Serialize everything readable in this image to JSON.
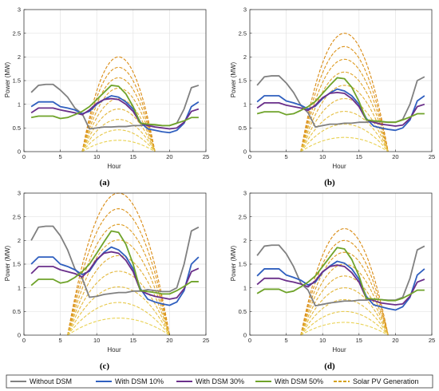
{
  "legend": {
    "items": [
      {
        "label": "Without DSM",
        "color": "#808080",
        "style": "solid"
      },
      {
        "label": "With DSM 10%",
        "color": "#2f5fbf",
        "style": "solid"
      },
      {
        "label": "With DSM 30%",
        "color": "#6a2f8a",
        "style": "solid"
      },
      {
        "label": "With DSM 50%",
        "color": "#6fa32a",
        "style": "solid"
      },
      {
        "label": "Solar PV Generation",
        "color": "#d4a017",
        "style": "dashed"
      }
    ]
  },
  "chart_data": [
    {
      "type": "line",
      "panel_label": "(a)",
      "xlabel": "Hour",
      "ylabel": "Power (MW)",
      "xlim": [
        0,
        25
      ],
      "ylim": [
        0,
        3
      ],
      "xticks": [
        0,
        5,
        10,
        15,
        20,
        25
      ],
      "yticks": [
        0,
        0.5,
        1,
        1.5,
        2,
        2.5,
        3
      ],
      "grid": true,
      "x": [
        1,
        2,
        3,
        4,
        5,
        6,
        7,
        8,
        9,
        10,
        11,
        12,
        13,
        14,
        15,
        16,
        17,
        18,
        19,
        20,
        21,
        22,
        23,
        24
      ],
      "series": [
        {
          "name": "Without DSM",
          "values": [
            1.25,
            1.4,
            1.42,
            1.42,
            1.3,
            1.15,
            0.92,
            0.8,
            0.48,
            0.5,
            0.52,
            0.52,
            0.53,
            0.53,
            0.55,
            0.55,
            0.57,
            0.56,
            0.55,
            0.55,
            0.6,
            0.9,
            1.35,
            1.4
          ]
        },
        {
          "name": "With DSM 10%",
          "values": [
            0.95,
            1.05,
            1.05,
            1.05,
            0.95,
            0.92,
            0.88,
            0.8,
            0.85,
            1.0,
            1.1,
            1.18,
            1.15,
            1.05,
            0.9,
            0.62,
            0.48,
            0.45,
            0.42,
            0.4,
            0.45,
            0.6,
            0.95,
            1.05
          ]
        },
        {
          "name": "With DSM 30%",
          "values": [
            0.82,
            0.92,
            0.92,
            0.92,
            0.88,
            0.85,
            0.82,
            0.78,
            0.88,
            1.02,
            1.1,
            1.12,
            1.1,
            1.0,
            0.85,
            0.6,
            0.55,
            0.52,
            0.5,
            0.48,
            0.5,
            0.62,
            0.85,
            0.9
          ]
        },
        {
          "name": "With DSM 50%",
          "values": [
            0.72,
            0.75,
            0.75,
            0.75,
            0.7,
            0.72,
            0.78,
            0.85,
            0.95,
            1.1,
            1.25,
            1.4,
            1.38,
            1.22,
            0.95,
            0.6,
            0.58,
            0.57,
            0.55,
            0.55,
            0.6,
            0.65,
            0.72,
            0.72
          ]
        }
      ],
      "solar": {
        "name": "Solar PV Generation",
        "start": 8,
        "end": 18,
        "peaks": [
          2.0,
          1.78,
          1.56,
          1.34,
          1.12,
          0.9,
          0.68,
          0.46,
          0.24
        ]
      }
    },
    {
      "type": "line",
      "panel_label": "(b)",
      "xlabel": "Hour",
      "ylabel": "Power (MW)",
      "xlim": [
        0,
        25
      ],
      "ylim": [
        0,
        3
      ],
      "xticks": [
        0,
        5,
        10,
        15,
        20,
        25
      ],
      "yticks": [
        0,
        0.5,
        1,
        1.5,
        2,
        2.5,
        3
      ],
      "grid": true,
      "x": [
        1,
        2,
        3,
        4,
        5,
        6,
        7,
        8,
        9,
        10,
        11,
        12,
        13,
        14,
        15,
        16,
        17,
        18,
        19,
        20,
        21,
        22,
        23,
        24
      ],
      "series": [
        {
          "name": "Without DSM",
          "values": [
            1.4,
            1.58,
            1.6,
            1.6,
            1.45,
            1.25,
            0.98,
            0.82,
            0.52,
            0.55,
            0.58,
            0.58,
            0.6,
            0.6,
            0.62,
            0.62,
            0.64,
            0.63,
            0.62,
            0.62,
            0.68,
            1.0,
            1.5,
            1.58
          ]
        },
        {
          "name": "With DSM 10%",
          "values": [
            1.05,
            1.18,
            1.18,
            1.18,
            1.07,
            1.03,
            0.98,
            0.9,
            0.96,
            1.12,
            1.24,
            1.32,
            1.28,
            1.18,
            1.0,
            0.7,
            0.54,
            0.5,
            0.47,
            0.45,
            0.5,
            0.67,
            1.07,
            1.18
          ]
        },
        {
          "name": "With DSM 30%",
          "values": [
            0.92,
            1.03,
            1.03,
            1.03,
            0.98,
            0.95,
            0.92,
            0.87,
            0.98,
            1.14,
            1.23,
            1.25,
            1.23,
            1.12,
            0.95,
            0.67,
            0.62,
            0.58,
            0.56,
            0.54,
            0.56,
            0.7,
            0.95,
            1.0
          ]
        },
        {
          "name": "With DSM 50%",
          "values": [
            0.8,
            0.84,
            0.84,
            0.84,
            0.78,
            0.8,
            0.87,
            0.95,
            1.06,
            1.23,
            1.4,
            1.56,
            1.54,
            1.36,
            1.06,
            0.67,
            0.65,
            0.64,
            0.62,
            0.62,
            0.67,
            0.73,
            0.8,
            0.8
          ]
        }
      ],
      "solar": {
        "name": "Solar PV Generation",
        "start": 7,
        "end": 19,
        "peaks": [
          2.5,
          2.22,
          1.95,
          1.68,
          1.4,
          1.12,
          0.85,
          0.58,
          0.3
        ]
      }
    },
    {
      "type": "line",
      "panel_label": "(c)",
      "xlabel": "Hour",
      "ylabel": "Power (MW)",
      "xlim": [
        0,
        25
      ],
      "ylim": [
        0,
        3
      ],
      "xticks": [
        0,
        5,
        10,
        15,
        20,
        25
      ],
      "yticks": [
        0,
        0.5,
        1,
        1.5,
        2,
        2.5,
        3
      ],
      "grid": true,
      "x": [
        1,
        2,
        3,
        4,
        5,
        6,
        7,
        8,
        9,
        10,
        11,
        12,
        13,
        14,
        15,
        16,
        17,
        18,
        19,
        20,
        21,
        22,
        23,
        24
      ],
      "series": [
        {
          "name": "Without DSM",
          "values": [
            2.0,
            2.28,
            2.3,
            2.3,
            2.1,
            1.8,
            1.4,
            1.2,
            0.8,
            0.82,
            0.86,
            0.88,
            0.9,
            0.9,
            0.93,
            0.93,
            0.96,
            0.94,
            0.92,
            0.92,
            1.0,
            1.5,
            2.2,
            2.28
          ]
        },
        {
          "name": "With DSM 10%",
          "values": [
            1.5,
            1.65,
            1.65,
            1.65,
            1.5,
            1.45,
            1.38,
            1.28,
            1.35,
            1.58,
            1.75,
            1.86,
            1.8,
            1.66,
            1.4,
            0.98,
            0.76,
            0.7,
            0.66,
            0.63,
            0.7,
            0.94,
            1.5,
            1.65
          ]
        },
        {
          "name": "With DSM 30%",
          "values": [
            1.3,
            1.45,
            1.45,
            1.45,
            1.38,
            1.34,
            1.3,
            1.23,
            1.38,
            1.6,
            1.73,
            1.76,
            1.73,
            1.58,
            1.34,
            0.94,
            0.87,
            0.82,
            0.79,
            0.76,
            0.79,
            0.98,
            1.34,
            1.41
          ]
        },
        {
          "name": "With DSM 50%",
          "values": [
            1.05,
            1.18,
            1.18,
            1.18,
            1.1,
            1.13,
            1.22,
            1.34,
            1.5,
            1.73,
            1.97,
            2.2,
            2.17,
            1.92,
            1.5,
            0.94,
            0.92,
            0.9,
            0.87,
            0.87,
            0.94,
            1.03,
            1.13,
            1.13
          ]
        }
      ],
      "solar": {
        "name": "Solar PV Generation",
        "start": 6,
        "end": 20,
        "peaks": [
          3.0,
          2.67,
          2.34,
          2.01,
          1.68,
          1.35,
          1.02,
          0.69,
          0.36
        ]
      }
    },
    {
      "type": "line",
      "panel_label": "(d)",
      "xlabel": "Hour",
      "ylabel": "Power (MW)",
      "xlim": [
        0,
        25
      ],
      "ylim": [
        0,
        3
      ],
      "xticks": [
        0,
        5,
        10,
        15,
        20,
        25
      ],
      "yticks": [
        0,
        0.5,
        1,
        1.5,
        2,
        2.5,
        3
      ],
      "grid": true,
      "x": [
        1,
        2,
        3,
        4,
        5,
        6,
        7,
        8,
        9,
        10,
        11,
        12,
        13,
        14,
        15,
        16,
        17,
        18,
        19,
        20,
        21,
        22,
        23,
        24
      ],
      "series": [
        {
          "name": "Without DSM",
          "values": [
            1.68,
            1.88,
            1.9,
            1.9,
            1.72,
            1.45,
            1.1,
            0.95,
            0.62,
            0.65,
            0.68,
            0.7,
            0.72,
            0.72,
            0.74,
            0.74,
            0.76,
            0.75,
            0.74,
            0.74,
            0.8,
            1.2,
            1.8,
            1.88
          ]
        },
        {
          "name": "With DSM 10%",
          "values": [
            1.25,
            1.4,
            1.4,
            1.4,
            1.27,
            1.22,
            1.16,
            1.06,
            1.12,
            1.33,
            1.46,
            1.56,
            1.52,
            1.4,
            1.18,
            0.82,
            0.64,
            0.6,
            0.56,
            0.53,
            0.6,
            0.8,
            1.27,
            1.4
          ]
        },
        {
          "name": "With DSM 30%",
          "values": [
            1.07,
            1.2,
            1.2,
            1.2,
            1.15,
            1.12,
            1.08,
            1.02,
            1.15,
            1.34,
            1.45,
            1.48,
            1.45,
            1.32,
            1.12,
            0.78,
            0.73,
            0.68,
            0.66,
            0.64,
            0.66,
            0.82,
            1.12,
            1.18
          ]
        },
        {
          "name": "With DSM 50%",
          "values": [
            0.88,
            0.97,
            0.97,
            0.97,
            0.9,
            0.93,
            1.02,
            1.12,
            1.25,
            1.45,
            1.65,
            1.85,
            1.82,
            1.6,
            1.25,
            0.78,
            0.76,
            0.75,
            0.73,
            0.73,
            0.78,
            0.86,
            0.95,
            0.95
          ]
        }
      ],
      "solar": {
        "name": "Solar PV Generation",
        "start": 7,
        "end": 19,
        "peaks": [
          2.25,
          2.0,
          1.75,
          1.5,
          1.25,
          1.0,
          0.75,
          0.5,
          0.27
        ]
      }
    }
  ]
}
